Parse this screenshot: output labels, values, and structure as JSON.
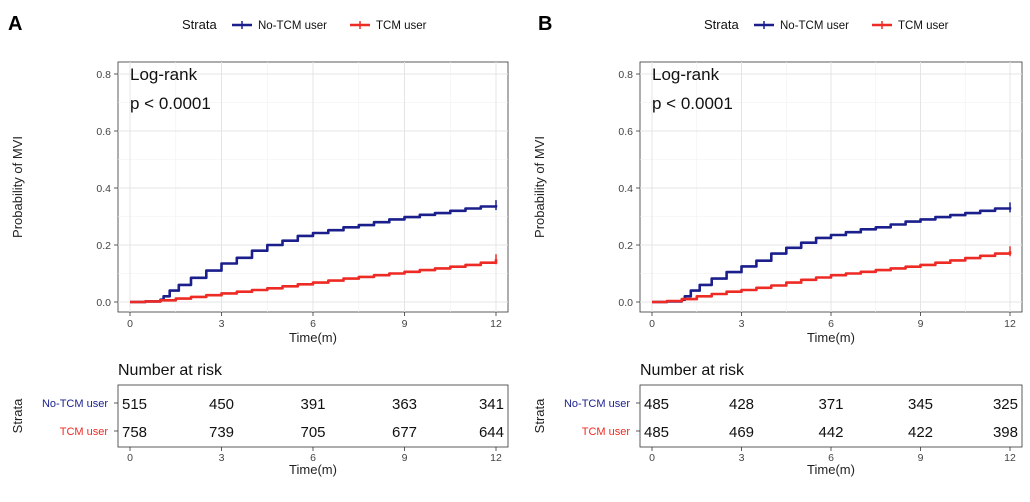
{
  "chart_data": [
    {
      "panel": "A",
      "type": "line",
      "legend": {
        "title": "Strata",
        "entries": [
          {
            "name": "No-TCM user",
            "color": "#1a1f8c"
          },
          {
            "name": "TCM user",
            "color": "#ee2a24"
          }
        ],
        "placement": "top"
      },
      "annotation": [
        "Log-rank",
        "p < 0.0001"
      ],
      "xlabel": "Time(m)",
      "ylabel": "Probability of MVI",
      "xlim": [
        0,
        12
      ],
      "ylim": [
        0,
        0.8
      ],
      "x_ticks": [
        0,
        3,
        6,
        9,
        12
      ],
      "y_ticks": [
        "0.0",
        "0.2",
        "0.4",
        "0.6",
        "0.8"
      ],
      "grid": true,
      "series": [
        {
          "name": "No-TCM user",
          "color": "#1a1f8c",
          "x": [
            0,
            0.5,
            1.0,
            1.1,
            1.3,
            1.6,
            2.0,
            2.5,
            3.0,
            3.5,
            4.0,
            4.5,
            5.0,
            5.5,
            6.0,
            6.5,
            7.0,
            7.5,
            8.0,
            8.5,
            9.0,
            9.5,
            10.0,
            10.5,
            11.0,
            11.5,
            12.0
          ],
          "y": [
            0,
            0.002,
            0.008,
            0.02,
            0.04,
            0.06,
            0.085,
            0.11,
            0.135,
            0.155,
            0.18,
            0.2,
            0.215,
            0.232,
            0.242,
            0.252,
            0.262,
            0.27,
            0.28,
            0.29,
            0.298,
            0.306,
            0.312,
            0.32,
            0.328,
            0.335,
            0.34
          ]
        },
        {
          "name": "TCM user",
          "color": "#ee2a24",
          "x": [
            0,
            0.5,
            1.0,
            1.5,
            2.0,
            2.5,
            3.0,
            3.5,
            4.0,
            4.5,
            5.0,
            5.5,
            6.0,
            6.5,
            7.0,
            7.5,
            8.0,
            8.5,
            9.0,
            9.5,
            10.0,
            10.5,
            11.0,
            11.5,
            12.0
          ],
          "y": [
            0,
            0.002,
            0.006,
            0.012,
            0.018,
            0.024,
            0.03,
            0.036,
            0.042,
            0.048,
            0.055,
            0.062,
            0.068,
            0.075,
            0.082,
            0.088,
            0.094,
            0.1,
            0.106,
            0.112,
            0.118,
            0.124,
            0.13,
            0.138,
            0.15
          ]
        }
      ],
      "risk_table": {
        "title": "Number at risk",
        "ylabel": "Strata",
        "xlabel": "Time(m)",
        "x_ticks": [
          0,
          3,
          6,
          9,
          12
        ],
        "rows": [
          {
            "label": "No-TCM user",
            "color": "#1a1f8c",
            "values": [
              "515",
              "450",
              "391",
              "363",
              "341"
            ]
          },
          {
            "label": "TCM user",
            "color": "#ee2a24",
            "values": [
              "758",
              "739",
              "705",
              "677",
              "644"
            ]
          }
        ]
      }
    },
    {
      "panel": "B",
      "type": "line",
      "legend": {
        "title": "Strata",
        "entries": [
          {
            "name": "No-TCM user",
            "color": "#1a1f8c"
          },
          {
            "name": "TCM user",
            "color": "#ee2a24"
          }
        ],
        "placement": "top"
      },
      "annotation": [
        "Log-rank",
        "p < 0.0001"
      ],
      "xlabel": "Time(m)",
      "ylabel": "Probability of MVI",
      "xlim": [
        0,
        12
      ],
      "ylim": [
        0,
        0.8
      ],
      "x_ticks": [
        0,
        3,
        6,
        9,
        12
      ],
      "y_ticks": [
        "0.0",
        "0.2",
        "0.4",
        "0.6",
        "0.8"
      ],
      "grid": true,
      "series": [
        {
          "name": "No-TCM user",
          "color": "#1a1f8c",
          "x": [
            0,
            0.5,
            1.0,
            1.1,
            1.3,
            1.6,
            2.0,
            2.5,
            3.0,
            3.5,
            4.0,
            4.5,
            5.0,
            5.5,
            6.0,
            6.5,
            7.0,
            7.5,
            8.0,
            8.5,
            9.0,
            9.5,
            10.0,
            10.5,
            11.0,
            11.5,
            12.0
          ],
          "y": [
            0,
            0.002,
            0.008,
            0.02,
            0.04,
            0.06,
            0.082,
            0.105,
            0.125,
            0.145,
            0.17,
            0.19,
            0.208,
            0.225,
            0.235,
            0.245,
            0.255,
            0.262,
            0.272,
            0.282,
            0.29,
            0.298,
            0.305,
            0.312,
            0.32,
            0.328,
            0.332
          ]
        },
        {
          "name": "TCM user",
          "color": "#ee2a24",
          "x": [
            0,
            0.5,
            1.0,
            1.5,
            2.0,
            2.5,
            3.0,
            3.5,
            4.0,
            4.5,
            5.0,
            5.5,
            6.0,
            6.5,
            7.0,
            7.5,
            8.0,
            8.5,
            9.0,
            9.5,
            10.0,
            10.5,
            11.0,
            11.5,
            12.0
          ],
          "y": [
            0,
            0.003,
            0.01,
            0.02,
            0.028,
            0.036,
            0.042,
            0.05,
            0.058,
            0.068,
            0.078,
            0.086,
            0.094,
            0.1,
            0.106,
            0.112,
            0.118,
            0.124,
            0.13,
            0.138,
            0.146,
            0.154,
            0.162,
            0.17,
            0.178
          ]
        }
      ],
      "risk_table": {
        "title": "Number at risk",
        "ylabel": "Strata",
        "xlabel": "Time(m)",
        "x_ticks": [
          0,
          3,
          6,
          9,
          12
        ],
        "rows": [
          {
            "label": "No-TCM user",
            "color": "#1a1f8c",
            "values": [
              "485",
              "428",
              "371",
              "345",
              "325"
            ]
          },
          {
            "label": "TCM user",
            "color": "#ee2a24",
            "values": [
              "485",
              "469",
              "442",
              "422",
              "398"
            ]
          }
        ]
      }
    }
  ]
}
